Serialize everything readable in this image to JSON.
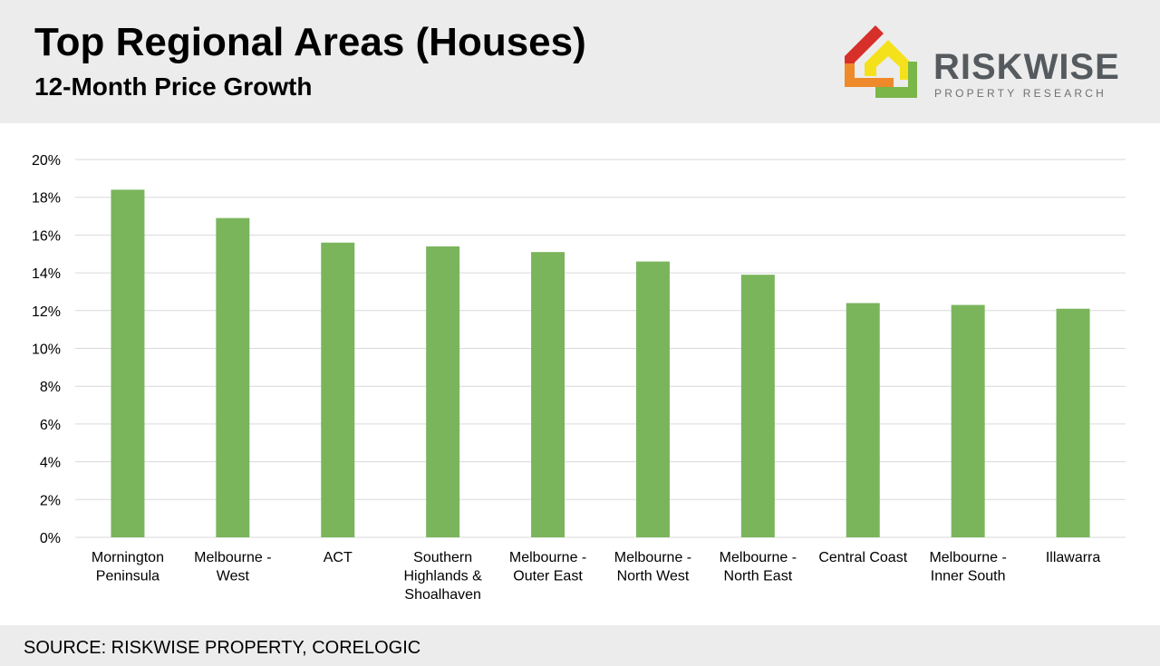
{
  "header": {
    "title": "Top Regional Areas (Houses)",
    "subtitle": "12-Month Price Growth"
  },
  "logo": {
    "word": "RISKWISE",
    "tagline": "PROPERTY RESEARCH",
    "colors": [
      "#d7302b",
      "#ef8a2a",
      "#f4e11c",
      "#7ab648"
    ]
  },
  "footer": {
    "source": "SOURCE: RISKWISE PROPERTY, CORELOGIC"
  },
  "colors": {
    "bar": "#7ab55c",
    "grid": "#d9d9d9",
    "header_bg": "#ececec"
  },
  "chart_data": {
    "type": "bar",
    "categories": [
      [
        "Mornington",
        "Peninsula"
      ],
      [
        "Melbourne -",
        "West"
      ],
      [
        "ACT"
      ],
      [
        "Southern",
        "Highlands &",
        "Shoalhaven"
      ],
      [
        "Melbourne -",
        "Outer East"
      ],
      [
        "Melbourne -",
        "North West"
      ],
      [
        "Melbourne -",
        "North East"
      ],
      [
        "Central Coast"
      ],
      [
        "Melbourne -",
        "Inner South"
      ],
      [
        "Illawarra"
      ]
    ],
    "values": [
      18.4,
      16.9,
      15.6,
      15.4,
      15.1,
      14.6,
      13.9,
      12.4,
      12.3,
      12.1
    ],
    "ylim": [
      0,
      20
    ],
    "yticks": [
      "0%",
      "2%",
      "4%",
      "6%",
      "8%",
      "10%",
      "12%",
      "14%",
      "16%",
      "18%",
      "20%"
    ],
    "grid": true
  }
}
